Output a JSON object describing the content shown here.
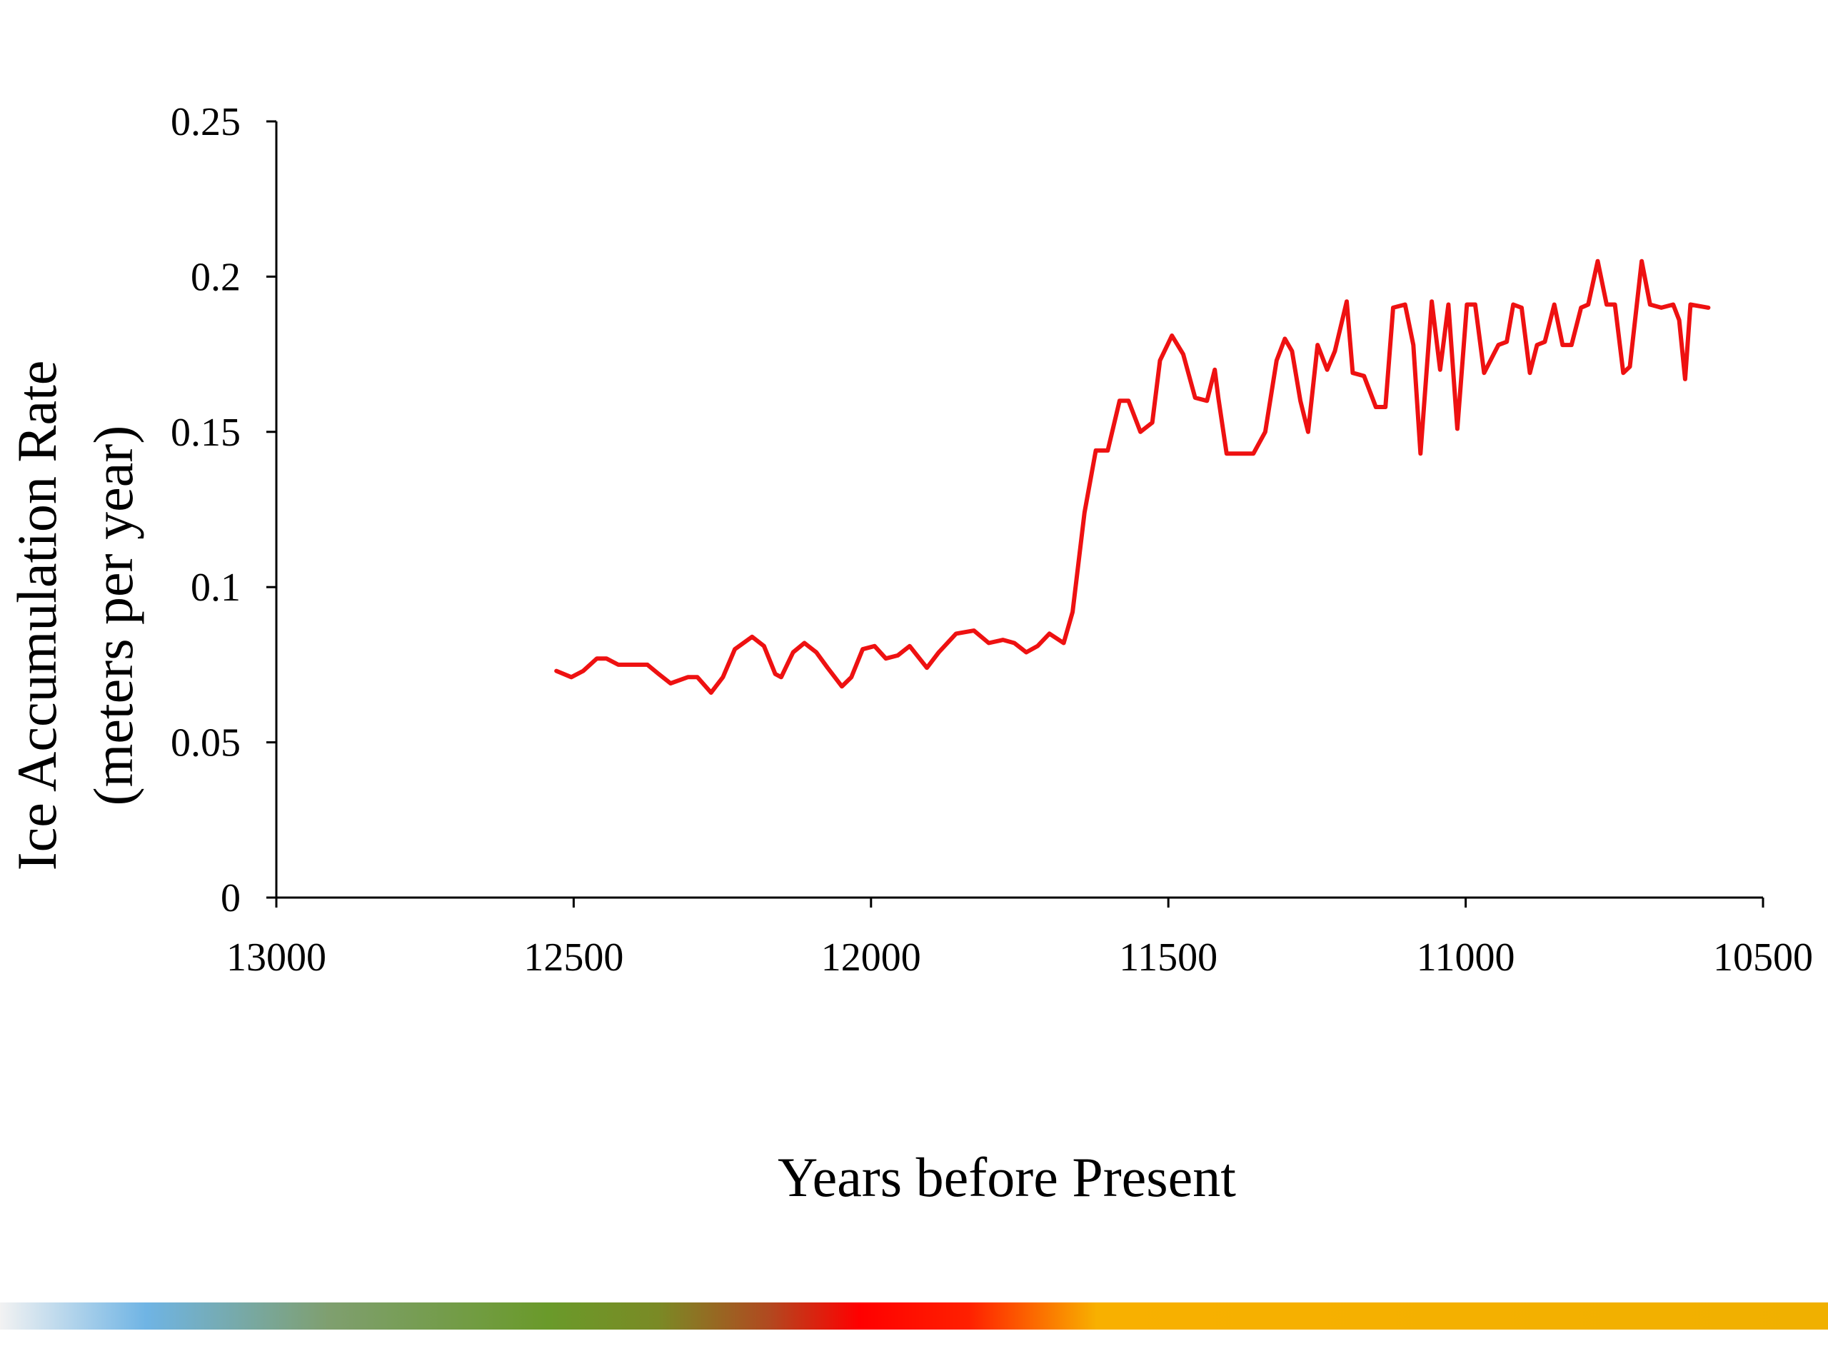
{
  "chart_data": {
    "type": "line",
    "xlabel": "Years before Present",
    "ylabel": [
      "Ice Accumulation Rate",
      "(meters per year)"
    ],
    "xlim": [
      13000,
      10500
    ],
    "xticks": [
      13000,
      12500,
      12000,
      11500,
      11000,
      10500
    ],
    "ylim": [
      0,
      0.25
    ],
    "yticks": [
      0,
      0.05,
      0.1,
      0.15,
      0.2,
      0.25
    ],
    "grid": false,
    "series": [
      {
        "color": "#ee1111",
        "x": [
          12529,
          12504,
          12484,
          12461,
          12445,
          12425,
          12396,
          12376,
          12357,
          12337,
          12308,
          12292,
          12269,
          12249,
          12229,
          12200,
          12180,
          12161,
          12151,
          12131,
          12112,
          12092,
          12073,
          12049,
          12033,
          12014,
          11994,
          11975,
          11955,
          11935,
          11906,
          11886,
          11857,
          11827,
          11802,
          11778,
          11759,
          11739,
          11720,
          11700,
          11676,
          11661,
          11641,
          11622,
          11602,
          11582,
          11567,
          11547,
          11527,
          11514,
          11494,
          11475,
          11455,
          11435,
          11422,
          11416,
          11402,
          11376,
          11357,
          11337,
          11318,
          11304,
          11292,
          11278,
          11265,
          11249,
          11233,
          11220,
          11200,
          11190,
          11171,
          11151,
          11135,
          11122,
          11102,
          11088,
          11076,
          11057,
          11043,
          11029,
          11014,
          10998,
          10984,
          10969,
          10945,
          10931,
          10920,
          10906,
          10892,
          10880,
          10867,
          10851,
          10837,
          10822,
          10806,
          10794,
          10778,
          10763,
          10749,
          10735,
          10724,
          10704,
          10690,
          10671,
          10651,
          10641,
          10631,
          10622,
          10592
        ],
        "values": [
          0.073,
          0.071,
          0.073,
          0.077,
          0.077,
          0.075,
          0.075,
          0.075,
          0.072,
          0.069,
          0.071,
          0.071,
          0.066,
          0.071,
          0.08,
          0.084,
          0.081,
          0.072,
          0.071,
          0.079,
          0.082,
          0.079,
          0.074,
          0.068,
          0.071,
          0.08,
          0.081,
          0.077,
          0.078,
          0.081,
          0.074,
          0.079,
          0.085,
          0.086,
          0.082,
          0.083,
          0.082,
          0.079,
          0.081,
          0.085,
          0.082,
          0.092,
          0.124,
          0.144,
          0.144,
          0.16,
          0.16,
          0.15,
          0.153,
          0.173,
          0.181,
          0.175,
          0.161,
          0.16,
          0.17,
          0.161,
          0.143,
          0.143,
          0.143,
          0.15,
          0.173,
          0.18,
          0.176,
          0.16,
          0.15,
          0.178,
          0.17,
          0.176,
          0.192,
          0.169,
          0.168,
          0.158,
          0.158,
          0.19,
          0.191,
          0.178,
          0.143,
          0.192,
          0.17,
          0.191,
          0.151,
          0.191,
          0.191,
          0.169,
          0.178,
          0.179,
          0.191,
          0.19,
          0.169,
          0.178,
          0.179,
          0.191,
          0.178,
          0.178,
          0.19,
          0.191,
          0.205,
          0.191,
          0.191,
          0.169,
          0.171,
          0.205,
          0.191,
          0.19,
          0.191,
          0.186,
          0.167,
          0.191,
          0.19
        ]
      }
    ]
  }
}
